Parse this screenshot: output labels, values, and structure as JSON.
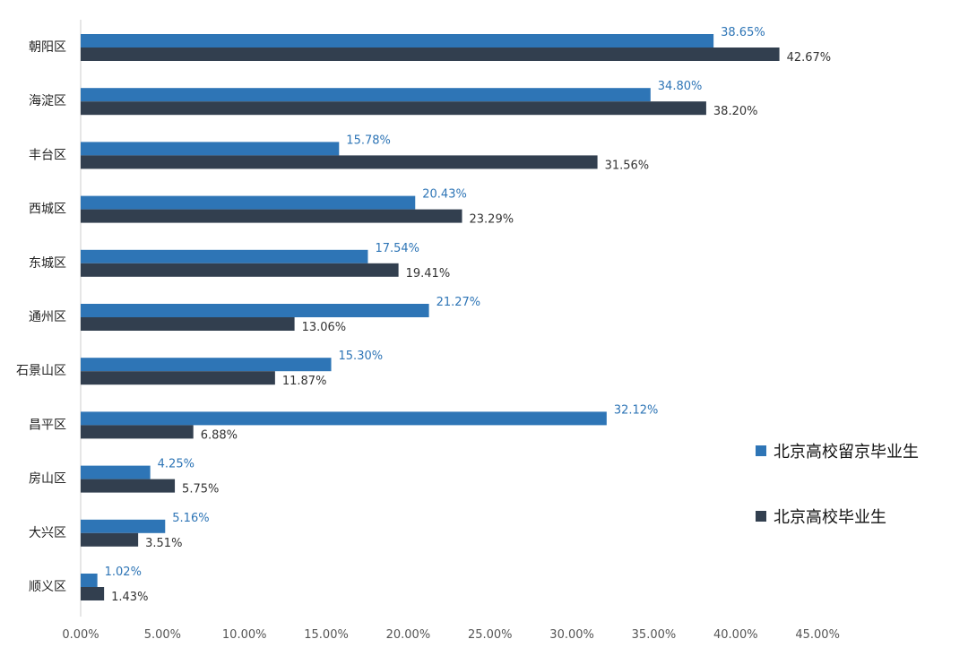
{
  "chart_data": {
    "type": "bar",
    "orientation": "horizontal",
    "title": "",
    "xlabel": "",
    "ylabel": "",
    "xlim": [
      0,
      45
    ],
    "x_ticks": [
      "0.00%",
      "5.00%",
      "10.00%",
      "15.00%",
      "20.00%",
      "25.00%",
      "30.00%",
      "35.00%",
      "40.00%",
      "45.00%"
    ],
    "categories": [
      "朝阳区",
      "海淀区",
      "丰台区",
      "西城区",
      "东城区",
      "通州区",
      "石景山区",
      "昌平区",
      "房山区",
      "大兴区",
      "顺义区"
    ],
    "series": [
      {
        "name": "北京高校留京毕业生",
        "color": "#2E75B6",
        "values": [
          38.65,
          34.8,
          15.78,
          20.43,
          17.54,
          21.27,
          15.3,
          32.12,
          4.25,
          5.16,
          1.02
        ],
        "labels": [
          "38.65%",
          "34.80%",
          "15.78%",
          "20.43%",
          "17.54%",
          "21.27%",
          "15.30%",
          "32.12%",
          "4.25%",
          "5.16%",
          "1.02%"
        ]
      },
      {
        "name": "北京高校毕业生",
        "color": "#323F4F",
        "values": [
          42.67,
          38.2,
          31.56,
          23.29,
          19.41,
          13.06,
          11.87,
          6.88,
          5.75,
          3.51,
          1.43
        ],
        "labels": [
          "42.67%",
          "38.20%",
          "31.56%",
          "23.29%",
          "19.41%",
          "13.06%",
          "11.87%",
          "6.88%",
          "5.75%",
          "3.51%",
          "1.43%"
        ]
      }
    ],
    "grid": false,
    "legend_position": "right"
  }
}
